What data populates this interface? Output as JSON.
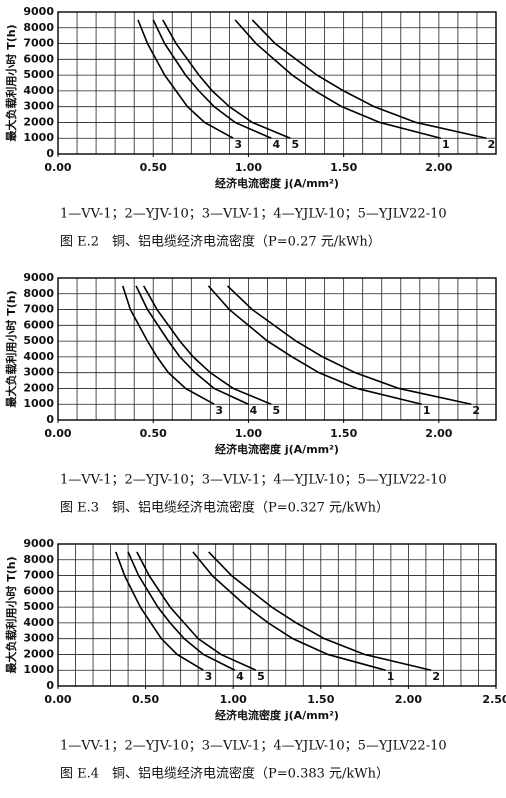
{
  "chart_data": [
    {
      "type": "line",
      "color": "#000000",
      "grid": true,
      "x_minor_grid": 0.1,
      "xlabel": "经济电流密度 j(A/mm²)",
      "ylabel": "最大负载利用小时 T(h)",
      "xlim": [
        0,
        2.3
      ],
      "ylim": [
        0,
        9000
      ],
      "xticks": [
        {
          "value": 0,
          "label": "0.00"
        },
        {
          "value": 0.5,
          "label": "0.50"
        },
        {
          "value": 1,
          "label": "1.00"
        },
        {
          "value": 1.5,
          "label": "1.50"
        },
        {
          "value": 2,
          "label": "2.00"
        }
      ],
      "yticks": [
        0,
        1000,
        2000,
        3000,
        4000,
        5000,
        6000,
        7000,
        8000,
        9000
      ],
      "series": [
        {
          "name": "3",
          "x": [
            0.42,
            0.47,
            0.56,
            0.62,
            0.68,
            0.77,
            0.92
          ],
          "values": [
            8500,
            7000,
            5000,
            4000,
            3000,
            2000,
            1000
          ]
        },
        {
          "name": "4",
          "x": [
            0.5,
            0.56,
            0.67,
            0.74,
            0.82,
            0.93,
            1.12
          ],
          "values": [
            8500,
            7000,
            5000,
            4000,
            3000,
            2000,
            1000
          ]
        },
        {
          "name": "5",
          "x": [
            0.55,
            0.62,
            0.74,
            0.81,
            0.9,
            1.02,
            1.22
          ],
          "values": [
            8500,
            7000,
            5000,
            4000,
            3000,
            2000,
            1000
          ]
        },
        {
          "name": "1",
          "x": [
            0.93,
            1.04,
            1.23,
            1.35,
            1.49,
            1.69,
            2.01
          ],
          "values": [
            8500,
            7000,
            5000,
            4000,
            3000,
            2000,
            1000
          ]
        },
        {
          "name": "2",
          "x": [
            1.02,
            1.14,
            1.36,
            1.5,
            1.66,
            1.88,
            2.25
          ],
          "values": [
            8500,
            7000,
            5000,
            4000,
            3000,
            2000,
            1000
          ]
        }
      ],
      "legend_text": "1—VV-1；2—YJV-10；3—VLV-1；4—YJLV-10；5—YJLV22-10",
      "caption": "图 E.2　铜、铝电缆经济电流密度（P=0.27 元/kWh）"
    },
    {
      "type": "line",
      "color": "#000000",
      "grid": true,
      "x_minor_grid": 0.1,
      "xlabel": "经济电流密度 j(A/mm²)",
      "ylabel": "最大负载利用小时 T(h)",
      "xlim": [
        0,
        2.3
      ],
      "ylim": [
        0,
        9000
      ],
      "xticks": [
        {
          "value": 0,
          "label": "0.00"
        },
        {
          "value": 0.5,
          "label": "0.50"
        },
        {
          "value": 1,
          "label": "1.00"
        },
        {
          "value": 1.5,
          "label": "1.50"
        },
        {
          "value": 2,
          "label": "2.00"
        }
      ],
      "yticks": [
        0,
        1000,
        2000,
        3000,
        4000,
        5000,
        6000,
        7000,
        8000,
        9000
      ],
      "series": [
        {
          "name": "3",
          "x": [
            0.34,
            0.38,
            0.47,
            0.52,
            0.58,
            0.67,
            0.82
          ],
          "values": [
            8500,
            7000,
            5000,
            4000,
            3000,
            2000,
            1000
          ]
        },
        {
          "name": "4",
          "x": [
            0.41,
            0.47,
            0.58,
            0.64,
            0.72,
            0.82,
            1.0
          ],
          "values": [
            8500,
            7000,
            5000,
            4000,
            3000,
            2000,
            1000
          ]
        },
        {
          "name": "5",
          "x": [
            0.45,
            0.52,
            0.64,
            0.71,
            0.8,
            0.92,
            1.12
          ],
          "values": [
            8500,
            7000,
            5000,
            4000,
            3000,
            2000,
            1000
          ]
        },
        {
          "name": "1",
          "x": [
            0.79,
            0.9,
            1.1,
            1.23,
            1.37,
            1.57,
            1.91
          ],
          "values": [
            8500,
            7000,
            5000,
            4000,
            3000,
            2000,
            1000
          ]
        },
        {
          "name": "2",
          "x": [
            0.89,
            1.02,
            1.25,
            1.39,
            1.56,
            1.79,
            2.17
          ],
          "values": [
            8500,
            7000,
            5000,
            4000,
            3000,
            2000,
            1000
          ]
        }
      ],
      "legend_text": "1—VV-1；2—YJV-10；3—VLV-1；4—YJLV-10；5—YJLV22-10",
      "caption": "图 E.3　铜、铝电缆经济电流密度（P=0.327 元/kWh）"
    },
    {
      "type": "line",
      "color": "#000000",
      "grid": true,
      "x_minor_grid": 0.1,
      "xlabel": "经济电流密度 j(A/mm²)",
      "ylabel": "最大负载利用小时 T(h)",
      "xlim": [
        0,
        2.5
      ],
      "ylim": [
        0,
        9000
      ],
      "xticks": [
        {
          "value": 0,
          "label": "0.00"
        },
        {
          "value": 0.5,
          "label": "0.50"
        },
        {
          "value": 1,
          "label": "1.00"
        },
        {
          "value": 1.5,
          "label": "1.50"
        },
        {
          "value": 2,
          "label": "2.00"
        },
        {
          "value": 2.5,
          "label": "2.50"
        }
      ],
      "yticks": [
        0,
        1000,
        2000,
        3000,
        4000,
        5000,
        6000,
        7000,
        8000,
        9000
      ],
      "series": [
        {
          "name": "3",
          "x": [
            0.33,
            0.38,
            0.47,
            0.53,
            0.59,
            0.68,
            0.83
          ],
          "values": [
            8500,
            7000,
            5000,
            4000,
            3000,
            2000,
            1000
          ]
        },
        {
          "name": "4",
          "x": [
            0.4,
            0.46,
            0.57,
            0.64,
            0.72,
            0.83,
            1.01
          ],
          "values": [
            8500,
            7000,
            5000,
            4000,
            3000,
            2000,
            1000
          ]
        },
        {
          "name": "5",
          "x": [
            0.45,
            0.52,
            0.64,
            0.72,
            0.8,
            0.93,
            1.13
          ],
          "values": [
            8500,
            7000,
            5000,
            4000,
            3000,
            2000,
            1000
          ]
        },
        {
          "name": "1",
          "x": [
            0.77,
            0.88,
            1.08,
            1.2,
            1.34,
            1.54,
            1.87
          ],
          "values": [
            8500,
            7000,
            5000,
            4000,
            3000,
            2000,
            1000
          ]
        },
        {
          "name": "2",
          "x": [
            0.86,
            0.99,
            1.22,
            1.36,
            1.52,
            1.75,
            2.13
          ],
          "values": [
            8500,
            7000,
            5000,
            4000,
            3000,
            2000,
            1000
          ]
        }
      ],
      "legend_text": "1—VV-1；2—YJV-10；3—VLV-1；4—YJLV-10；5—YJLV22-10",
      "caption": "图 E.4　铜、铝电缆经济电流密度（P=0.383 元/kWh）"
    }
  ]
}
